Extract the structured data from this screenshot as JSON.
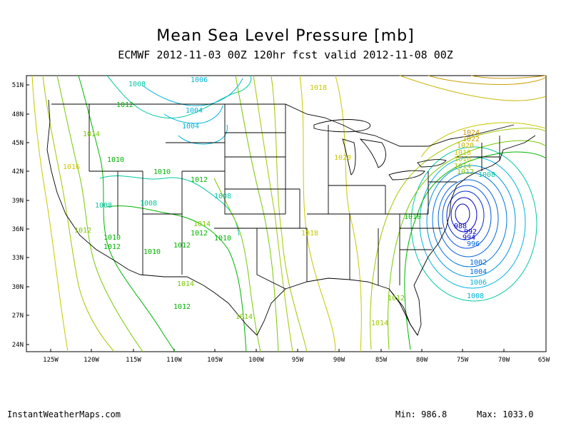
{
  "title": "Mean Sea Level Pressure [mb]",
  "subtitle": "ECMWF 2012-11-03 00Z 120hr fcst valid 2012-11-08 00Z",
  "footer": {
    "site": "InstantWeatherMaps.com",
    "min_label": "Min: 986.8",
    "max_label": "Max: 1033.0"
  },
  "axes": {
    "lat_ticks": [
      "51N",
      "48N",
      "45N",
      "42N",
      "39N",
      "36N",
      "33N",
      "30N",
      "27N",
      "24N"
    ],
    "lon_ticks": [
      "125W",
      "120W",
      "115W",
      "110W",
      "105W",
      "100W",
      "95W",
      "90W",
      "85W",
      "80W",
      "75W",
      "70W",
      "65W"
    ]
  },
  "colors": {
    "high_pressure": "#c8c800",
    "mid_pressure": "#78c800",
    "green": "#00b400",
    "teal": "#00c8a0",
    "cyan": "#00b4dc",
    "blue": "#0064dc",
    "deep_blue": "#0000c8"
  },
  "contour_labels": [
    {
      "text": "1008",
      "tone": "teal"
    },
    {
      "text": "1006",
      "tone": "cyan"
    },
    {
      "text": "1012",
      "tone": "green"
    },
    {
      "text": "1004",
      "tone": "cyan"
    },
    {
      "text": "1004",
      "tone": "cyan"
    },
    {
      "text": "1014",
      "tone": "mid_pressure"
    },
    {
      "text": "1010",
      "tone": "green"
    },
    {
      "text": "1016",
      "tone": "high_pressure"
    },
    {
      "text": "1010",
      "tone": "green"
    },
    {
      "text": "1012",
      "tone": "green"
    },
    {
      "text": "1008",
      "tone": "teal"
    },
    {
      "text": "1008",
      "tone": "teal"
    },
    {
      "text": "1008",
      "tone": "teal"
    },
    {
      "text": "1012",
      "tone": "mid_pressure"
    },
    {
      "text": "1010",
      "tone": "green"
    },
    {
      "text": "1012",
      "tone": "green"
    },
    {
      "text": "1010",
      "tone": "green"
    },
    {
      "text": "1014",
      "tone": "mid_pressure"
    },
    {
      "text": "1012",
      "tone": "green"
    },
    {
      "text": "1012",
      "tone": "green"
    },
    {
      "text": "1010",
      "tone": "green"
    },
    {
      "text": "1014",
      "tone": "mid_pressure"
    },
    {
      "text": "1012",
      "tone": "green"
    },
    {
      "text": "1014",
      "tone": "mid_pressure"
    },
    {
      "text": "1018",
      "tone": "high_pressure"
    },
    {
      "text": "1020",
      "tone": "high_pressure"
    },
    {
      "text": "1018",
      "tone": "high_pressure"
    },
    {
      "text": "1024",
      "tone": "high_pressure"
    },
    {
      "text": "1022",
      "tone": "high_pressure"
    },
    {
      "text": "1020",
      "tone": "high_pressure"
    },
    {
      "text": "1018",
      "tone": "high_pressure"
    },
    {
      "text": "1016",
      "tone": "high_pressure"
    },
    {
      "text": "1014",
      "tone": "mid_pressure"
    },
    {
      "text": "1012",
      "tone": "mid_pressure"
    },
    {
      "text": "1008",
      "tone": "teal"
    },
    {
      "text": "1010",
      "tone": "green"
    },
    {
      "text": "1012",
      "tone": "green"
    },
    {
      "text": "1014",
      "tone": "mid_pressure"
    },
    {
      "text": "1002",
      "tone": "blue"
    },
    {
      "text": "1004",
      "tone": "blue"
    },
    {
      "text": "1006",
      "tone": "cyan"
    },
    {
      "text": "1008",
      "tone": "cyan"
    },
    {
      "text": "996",
      "tone": "blue"
    },
    {
      "text": "994",
      "tone": "deep_blue"
    },
    {
      "text": "992",
      "tone": "deep_blue"
    },
    {
      "text": "988",
      "tone": "deep_blue"
    }
  ]
}
